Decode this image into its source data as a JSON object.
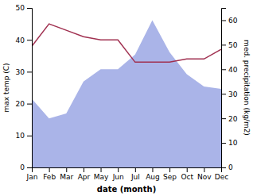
{
  "chart_data": {
    "type": "line",
    "xlabel": "date (month)",
    "ylabel": "max temp (C)",
    "y2label": "med. precipitation (kg/m2)",
    "categories": [
      "Jan",
      "Feb",
      "Mar",
      "Apr",
      "May",
      "Jun",
      "Jul",
      "Aug",
      "Sep",
      "Oct",
      "Nov",
      "Dec"
    ],
    "series": [
      {
        "type": "area",
        "axis": "y2",
        "color": "#aab4e8",
        "values": [
          28,
          20,
          22,
          35,
          40,
          40,
          46,
          60,
          47,
          38,
          33,
          32
        ]
      },
      {
        "type": "line",
        "color": "#a03050",
        "values": [
          38,
          45,
          43,
          41,
          40,
          40,
          33,
          33,
          33,
          34,
          34,
          37
        ]
      }
    ],
    "ylim": [
      0,
      50
    ],
    "yticks": [
      0,
      10,
      20,
      30,
      40,
      50
    ],
    "y2lim": [
      0,
      65
    ],
    "y2ticks": [
      0,
      10,
      20,
      30,
      40,
      50,
      60
    ],
    "grid": false
  }
}
